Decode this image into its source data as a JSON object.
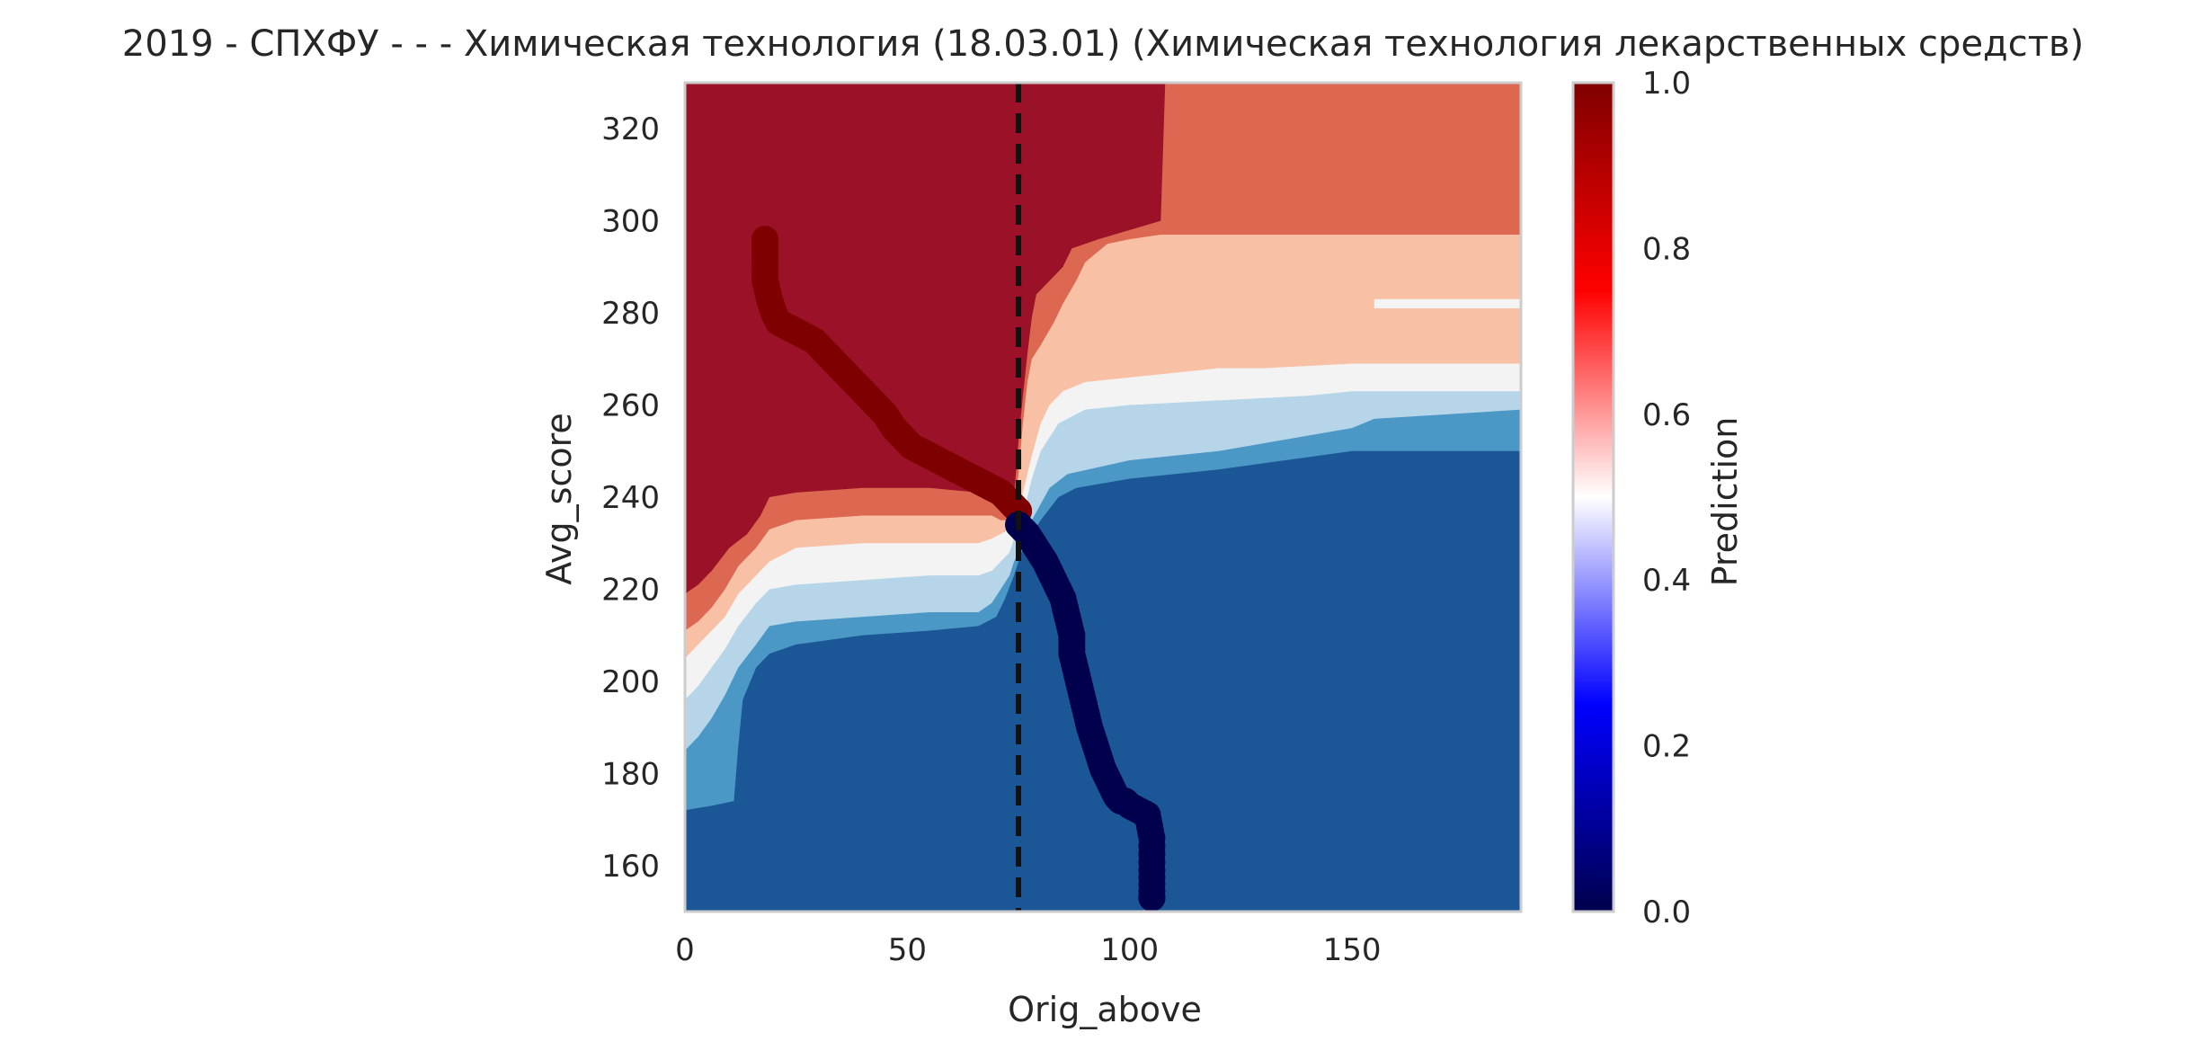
{
  "chart_data": {
    "type": "heatmap",
    "title": "2019 - СПХФУ - - - Химическая технология (18.03.01) (Химическая технология лекарственных средств)",
    "xlabel": "Orig_above",
    "ylabel": "Avg_score",
    "xlim": [
      0,
      188
    ],
    "ylim": [
      150,
      330
    ],
    "x_ticks": [
      0,
      50,
      100,
      150
    ],
    "x_tick_labels": [
      "0",
      "50",
      "100",
      "150"
    ],
    "y_ticks": [
      160,
      180,
      200,
      220,
      240,
      260,
      280,
      300,
      320
    ],
    "y_tick_labels": [
      "160",
      "180",
      "200",
      "220",
      "240",
      "260",
      "280",
      "300",
      "320"
    ],
    "grid": false,
    "colorbar": {
      "label": "Prediction",
      "range": [
        0,
        1
      ],
      "ticks": [
        0,
        0.2,
        0.4,
        0.6,
        0.8,
        1.0
      ],
      "tick_labels": [
        "0.0",
        "0.2",
        "0.4",
        "0.6",
        "0.8",
        "1.0"
      ],
      "colormap": "seismic"
    },
    "contour_levels": [
      {
        "range": [
          0.0,
          0.14
        ],
        "color": "#1b5796"
      },
      {
        "range": [
          0.14,
          0.29
        ],
        "color": "#4b98c7"
      },
      {
        "range": [
          0.29,
          0.43
        ],
        "color": "#b7d5e8"
      },
      {
        "range": [
          0.43,
          0.57
        ],
        "color": "#f3f3f3"
      },
      {
        "range": [
          0.57,
          0.71
        ],
        "color": "#f8c1a6"
      },
      {
        "range": [
          0.71,
          0.86
        ],
        "color": "#dc6852"
      },
      {
        "range": [
          0.86,
          1.0
        ],
        "color": "#9b1127"
      }
    ],
    "regions": {
      "red_dark_boundary": [
        [
          0,
          219
        ],
        [
          3,
          221
        ],
        [
          6,
          224
        ],
        [
          10,
          229
        ],
        [
          14,
          232
        ],
        [
          17,
          236
        ],
        [
          19,
          240
        ],
        [
          25,
          241
        ],
        [
          40,
          242
        ],
        [
          55,
          242
        ],
        [
          66,
          241
        ],
        [
          69,
          239
        ],
        [
          71,
          237
        ],
        [
          73,
          236
        ],
        [
          74,
          240
        ],
        [
          75,
          252
        ],
        [
          76,
          262
        ],
        [
          77,
          271
        ],
        [
          78,
          279
        ],
        [
          79,
          284
        ],
        [
          82,
          287
        ],
        [
          85,
          290
        ],
        [
          87,
          294
        ],
        [
          93,
          296
        ],
        [
          100,
          298
        ],
        [
          107,
          300
        ],
        [
          108,
          330
        ]
      ],
      "red_mid_boundary": [
        [
          0,
          211
        ],
        [
          3,
          213
        ],
        [
          6,
          216
        ],
        [
          9,
          220
        ],
        [
          12,
          225
        ],
        [
          16,
          229
        ],
        [
          19,
          233
        ],
        [
          25,
          235
        ],
        [
          40,
          236
        ],
        [
          55,
          236
        ],
        [
          66,
          236
        ],
        [
          69,
          236
        ],
        [
          71,
          235
        ],
        [
          73,
          235
        ],
        [
          74,
          238
        ],
        [
          75,
          245
        ],
        [
          76,
          256
        ],
        [
          77,
          265
        ],
        [
          78,
          270
        ],
        [
          80,
          273
        ],
        [
          83,
          278
        ],
        [
          85,
          282
        ],
        [
          88,
          287
        ],
        [
          90,
          291
        ],
        [
          95,
          295
        ],
        [
          100,
          296
        ],
        [
          107,
          297
        ],
        [
          120,
          297
        ],
        [
          140,
          297
        ],
        [
          188,
          297
        ]
      ],
      "salmon_boundary": [
        [
          0,
          205
        ],
        [
          3,
          208
        ],
        [
          6,
          211
        ],
        [
          9,
          214
        ],
        [
          12,
          219
        ],
        [
          16,
          223
        ],
        [
          19,
          226
        ],
        [
          25,
          229
        ],
        [
          40,
          230
        ],
        [
          55,
          230
        ],
        [
          66,
          230
        ],
        [
          69,
          231
        ],
        [
          71,
          232
        ],
        [
          73,
          233
        ],
        [
          74,
          235
        ],
        [
          76,
          241
        ],
        [
          78,
          249
        ],
        [
          80,
          256
        ],
        [
          82,
          260
        ],
        [
          85,
          263
        ],
        [
          90,
          265
        ],
        [
          100,
          266
        ],
        [
          110,
          267
        ],
        [
          120,
          268
        ],
        [
          130,
          268
        ],
        [
          150,
          269
        ],
        [
          188,
          269
        ]
      ],
      "white_boundary": [
        [
          0,
          196
        ],
        [
          3,
          199
        ],
        [
          6,
          203
        ],
        [
          9,
          207
        ],
        [
          12,
          212
        ],
        [
          16,
          217
        ],
        [
          19,
          220
        ],
        [
          25,
          221
        ],
        [
          40,
          222
        ],
        [
          55,
          223
        ],
        [
          66,
          223
        ],
        [
          69,
          224
        ],
        [
          71,
          226
        ],
        [
          73,
          228
        ],
        [
          74,
          231
        ],
        [
          76,
          236
        ],
        [
          78,
          244
        ],
        [
          80,
          250
        ],
        [
          84,
          256
        ],
        [
          90,
          259
        ],
        [
          100,
          260
        ],
        [
          120,
          261
        ],
        [
          140,
          262
        ],
        [
          150,
          263
        ],
        [
          188,
          263
        ]
      ],
      "lightblue_boundary": [
        [
          0,
          185
        ],
        [
          3,
          188
        ],
        [
          6,
          192
        ],
        [
          9,
          197
        ],
        [
          12,
          203
        ],
        [
          16,
          208
        ],
        [
          19,
          212
        ],
        [
          25,
          213
        ],
        [
          40,
          214
        ],
        [
          55,
          215
        ],
        [
          66,
          215
        ],
        [
          69,
          217
        ],
        [
          71,
          220
        ],
        [
          73,
          223
        ],
        [
          74,
          226
        ],
        [
          76,
          230
        ],
        [
          78,
          235
        ],
        [
          82,
          242
        ],
        [
          86,
          245
        ],
        [
          100,
          248
        ],
        [
          120,
          250
        ],
        [
          150,
          255
        ],
        [
          155,
          257
        ],
        [
          188,
          259
        ]
      ],
      "midblue_boundary": [
        [
          0,
          172
        ],
        [
          6,
          173
        ],
        [
          11,
          174
        ],
        [
          12,
          186
        ],
        [
          13,
          196
        ],
        [
          16,
          203
        ],
        [
          19,
          206
        ],
        [
          25,
          208
        ],
        [
          40,
          210
        ],
        [
          55,
          211
        ],
        [
          66,
          212
        ],
        [
          70,
          214
        ],
        [
          72,
          218
        ],
        [
          74,
          223
        ],
        [
          76,
          229
        ],
        [
          80,
          235
        ],
        [
          84,
          240
        ],
        [
          88,
          242
        ],
        [
          100,
          244
        ],
        [
          120,
          246
        ],
        [
          150,
          250
        ],
        [
          188,
          250
        ]
      ]
    },
    "white_stripe": {
      "x": [
        155,
        188
      ],
      "y": [
        281,
        283
      ]
    },
    "threshold_line": {
      "x": 75,
      "style": "dashed"
    },
    "series": [
      {
        "kind": "scatter-path",
        "color_value": 1.0,
        "x": [
          18,
          18,
          18,
          19,
          20,
          21,
          23,
          25,
          27,
          29,
          31,
          33,
          35,
          37,
          39,
          41,
          43,
          45,
          47,
          49,
          51,
          53,
          55,
          57,
          59,
          61,
          63,
          65,
          67,
          69,
          71,
          73,
          74,
          75
        ],
        "y": [
          296,
          292,
          287,
          283,
          280,
          278,
          277,
          276,
          275,
          274,
          272,
          270,
          268,
          266,
          264,
          262,
          260,
          258,
          255,
          253,
          251,
          250,
          249,
          248,
          247,
          246,
          245,
          244,
          243,
          242,
          241,
          239,
          238,
          237
        ]
      },
      {
        "kind": "scatter-path",
        "color_value": 0.0,
        "x": [
          75,
          77,
          79,
          81,
          83,
          85,
          86,
          87,
          87,
          88,
          89,
          90,
          91,
          92,
          93,
          94,
          95,
          96,
          97,
          98,
          99,
          100,
          102,
          104,
          105,
          105,
          105
        ],
        "y": [
          234,
          232,
          229,
          226,
          222,
          218,
          214,
          210,
          206,
          202,
          198,
          194,
          190,
          187,
          184,
          181,
          179,
          177,
          175,
          174,
          174,
          173,
          172,
          171,
          166,
          159,
          153
        ]
      }
    ]
  }
}
